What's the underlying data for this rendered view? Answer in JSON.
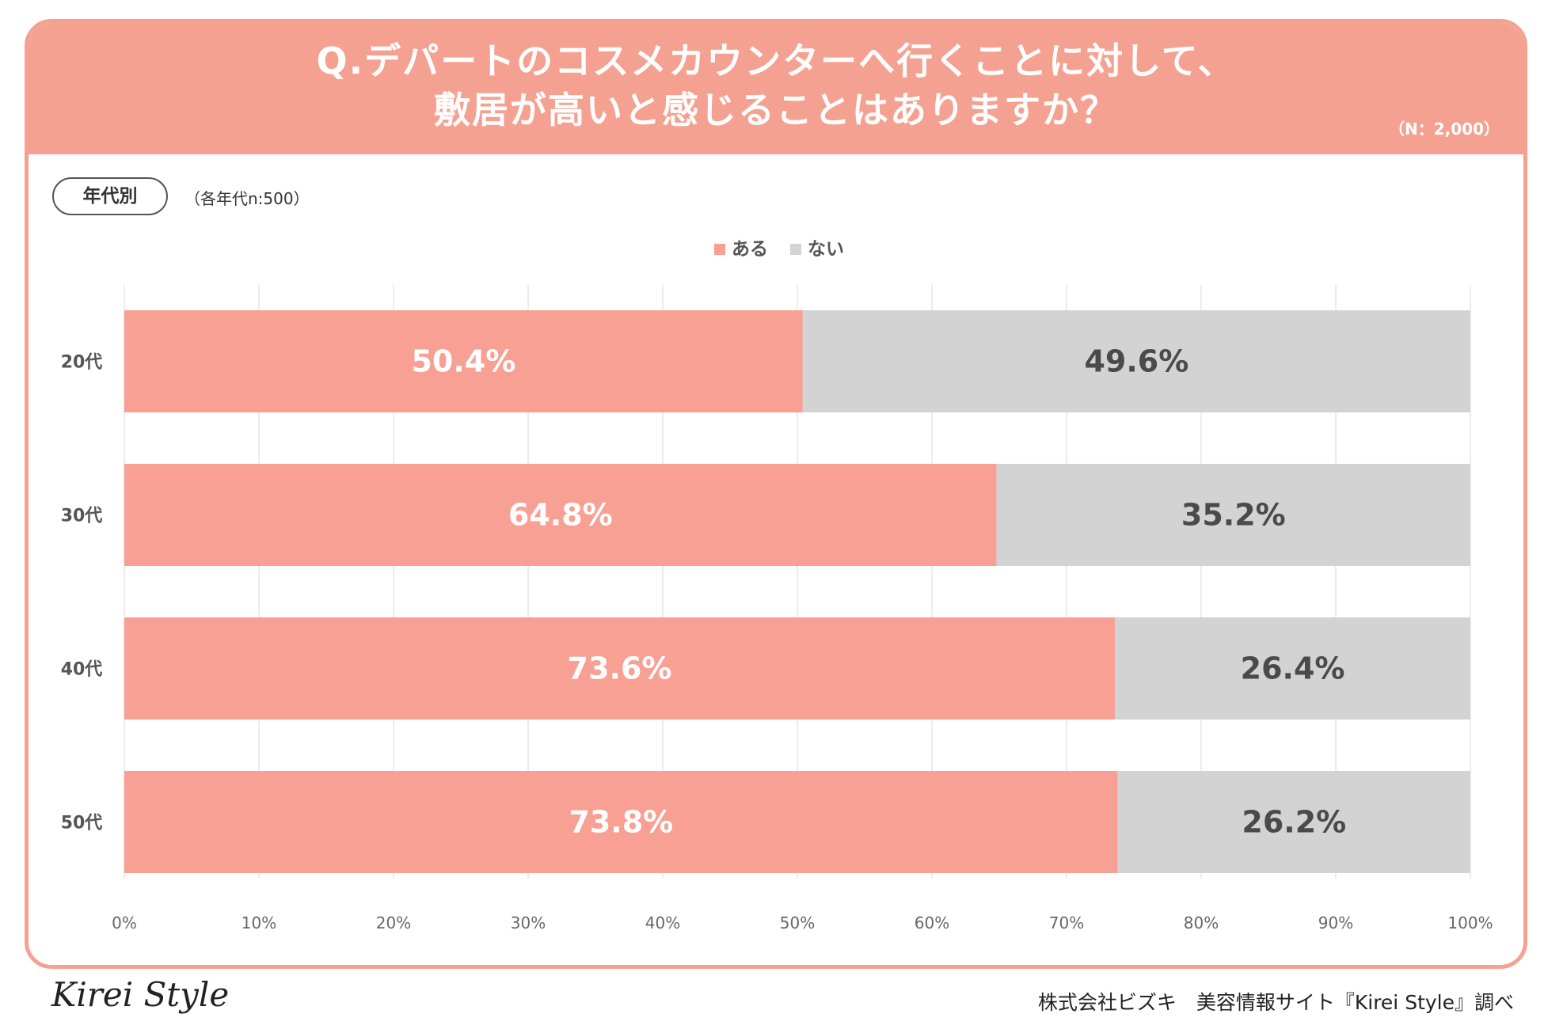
{
  "header": {
    "title_line1": "Q.デパートのコスメカウンターへ行くことに対して、",
    "title_line2": "敷居が高いと感じることはありますか？",
    "sample_total": "（N：2,000）"
  },
  "segment": {
    "label": "年代別",
    "sample_note": "（各年代n:500）"
  },
  "footer": {
    "logo": "Kirei Style",
    "credit": "株式会社ビズキ　美容情報サイト『Kirei Style』調べ"
  },
  "colors": {
    "accent": "#f5a191",
    "yes": "#f8a094",
    "no": "#d3d3d3",
    "grid": "#e6e6e6"
  },
  "chart_data": {
    "type": "bar",
    "orientation": "horizontal",
    "stacked": true,
    "categories": [
      "20代",
      "30代",
      "40代",
      "50代"
    ],
    "series": [
      {
        "name": "ある",
        "values": [
          50.4,
          64.8,
          73.6,
          73.8
        ],
        "labels": [
          "50.4%",
          "64.8%",
          "73.6%",
          "73.8%"
        ]
      },
      {
        "name": "ない",
        "values": [
          49.6,
          35.2,
          26.4,
          26.2
        ],
        "labels": [
          "49.6%",
          "35.2%",
          "26.4%",
          "26.2%"
        ]
      }
    ],
    "xlim": [
      0,
      100
    ],
    "xticks": [
      "0%",
      "10%",
      "20%",
      "30%",
      "40%",
      "50%",
      "60%",
      "70%",
      "80%",
      "90%",
      "100%"
    ],
    "grid": true,
    "legend": "top-center"
  }
}
